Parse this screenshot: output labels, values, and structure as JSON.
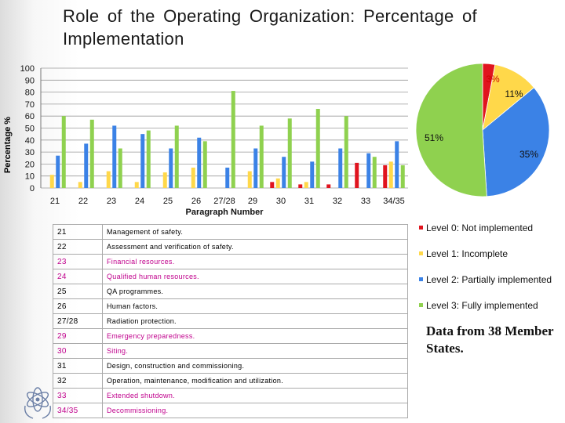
{
  "title": "Role of the Operating Organization: Percentage of Implementation",
  "colors": {
    "level0": "#e0141e",
    "level1": "#ffd84a",
    "level2": "#3b82e6",
    "level3": "#8fd14f"
  },
  "chart_data": [
    {
      "type": "bar",
      "xlabel": "Paragraph Number",
      "ylabel": "Percentage %",
      "ylim": [
        0,
        100
      ],
      "yticks": [
        0,
        10,
        20,
        30,
        40,
        50,
        60,
        70,
        80,
        90,
        100
      ],
      "grid": true,
      "categories": [
        "21",
        "22",
        "23",
        "24",
        "25",
        "26",
        "27/28",
        "29",
        "30",
        "31",
        "32",
        "33",
        "34/35"
      ],
      "series": [
        {
          "name": "Level 0: Not implemented",
          "color": "#e0141e",
          "values": [
            0,
            0,
            0,
            0,
            0,
            0,
            0,
            0,
            5,
            3,
            3,
            21,
            19
          ]
        },
        {
          "name": "Level 1: Incomplete",
          "color": "#ffd84a",
          "values": [
            11,
            5,
            14,
            5,
            13,
            17,
            0,
            14,
            8,
            5,
            0,
            0,
            22
          ]
        },
        {
          "name": "Level 2: Partially implemented",
          "color": "#3b82e6",
          "values": [
            27,
            37,
            52,
            45,
            33,
            42,
            17,
            33,
            26,
            22,
            33,
            29,
            39
          ]
        },
        {
          "name": "Level 3: Fully implemented",
          "color": "#8fd14f",
          "values": [
            60,
            57,
            33,
            48,
            52,
            39,
            81,
            52,
            58,
            66,
            60,
            26,
            19
          ]
        }
      ]
    },
    {
      "type": "pie",
      "labels": [
        "Level 0: Not implemented",
        "Level 1: Incomplete",
        "Level 2: Partially implemented",
        "Level 3: Fully implemented"
      ],
      "values": [
        3,
        11,
        35,
        51
      ],
      "value_labels": [
        "3%",
        "11%",
        "35%",
        "51%"
      ],
      "colors": [
        "#e0141e",
        "#ffd84a",
        "#3b82e6",
        "#8fd14f"
      ]
    }
  ],
  "table": [
    {
      "num": "21",
      "text": "Management of safety.",
      "color": "#000000"
    },
    {
      "num": "22",
      "text": "Assessment and verification of safety.",
      "color": "#000000"
    },
    {
      "num": "23",
      "text": "Financial resources.",
      "color": "#c0008c"
    },
    {
      "num": "24",
      "text": "Qualified human resources.",
      "color": "#c0008c"
    },
    {
      "num": "25",
      "text": "QA programmes.",
      "color": "#000000"
    },
    {
      "num": "26",
      "text": "Human factors.",
      "color": "#000000"
    },
    {
      "num": "27/28",
      "text": "Radiation protection.",
      "color": "#000000"
    },
    {
      "num": "29",
      "text": "Emergency preparedness.",
      "color": "#c0008c"
    },
    {
      "num": "30",
      "text": "Siting.",
      "color": "#c0008c"
    },
    {
      "num": "31",
      "text": "Design, construction and commissioning.",
      "color": "#000000"
    },
    {
      "num": "32",
      "text": "Operation, maintenance, modification and utilization.",
      "color": "#000000"
    },
    {
      "num": "33",
      "text": "Extended shutdown.",
      "color": "#c0008c"
    },
    {
      "num": "34/35",
      "text": "Decommissioning.",
      "color": "#c0008c"
    }
  ],
  "legend": [
    {
      "label": "Level 0: Not implemented",
      "color": "#e0141e"
    },
    {
      "label": "Level 1: Incomplete",
      "color": "#ffd84a"
    },
    {
      "label": "Level 2: Partially implemented",
      "color": "#3b82e6"
    },
    {
      "label": "Level 3: Fully implemented",
      "color": "#8fd14f"
    }
  ],
  "note": "Data from 38 Member States.",
  "logo_icon": "iaea-emblem-icon"
}
